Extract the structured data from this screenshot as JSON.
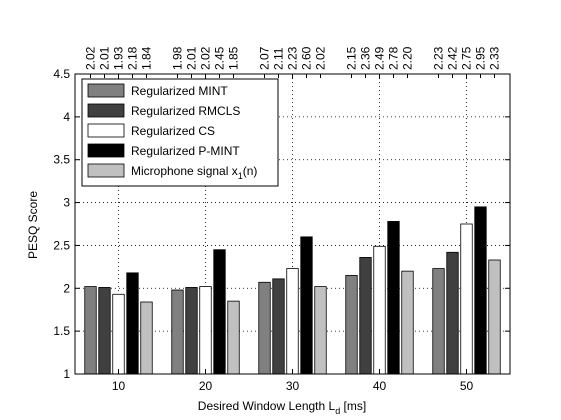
{
  "chart_data": {
    "type": "bar",
    "xlabel": "Desired Window Length L",
    "xlabel_subscript": "d",
    "xlabel_units": " [ms]",
    "ylabel": "PESQ Score",
    "ylim": [
      1,
      4.5
    ],
    "yticks": [
      "1",
      "1.5",
      "2",
      "2.5",
      "3",
      "3.5",
      "4",
      "4.5"
    ],
    "categories": [
      "10",
      "20",
      "30",
      "40",
      "50"
    ],
    "grid": true,
    "legend_position": "top-left",
    "series": [
      {
        "name": "Regularized MINT",
        "color": "#808080",
        "values": [
          2.02,
          1.98,
          2.07,
          2.15,
          2.23
        ],
        "top_labels": [
          "2.02",
          "1.98",
          "2.07",
          "2.15",
          "2.23"
        ]
      },
      {
        "name": "Regularized RMCLS",
        "color": "#404040",
        "values": [
          2.01,
          2.01,
          2.11,
          2.36,
          2.42
        ],
        "top_labels": [
          "2.01",
          "2.01",
          "2.11",
          "2.36",
          "2.42"
        ]
      },
      {
        "name": "Regularized CS",
        "color": "#ffffff",
        "values": [
          1.93,
          2.02,
          2.23,
          2.49,
          2.75
        ],
        "top_labels": [
          "1.93",
          "2.02",
          "2.23",
          "2.49",
          "2.75"
        ]
      },
      {
        "name": "Regularized P-MINT",
        "color": "#000000",
        "values": [
          2.18,
          2.45,
          2.6,
          2.78,
          2.95
        ],
        "top_labels": [
          "2.18",
          "2.45",
          "2.60",
          "2.78",
          "2.95"
        ]
      },
      {
        "name": "Microphone signal x",
        "name_subscript": "1",
        "name_suffix": "(n)",
        "color": "#c0c0c0",
        "values": [
          1.84,
          1.85,
          2.02,
          2.2,
          2.33
        ],
        "top_labels": [
          "1.84",
          "1.85",
          "2.02",
          "2.20",
          "2.33"
        ]
      }
    ]
  }
}
